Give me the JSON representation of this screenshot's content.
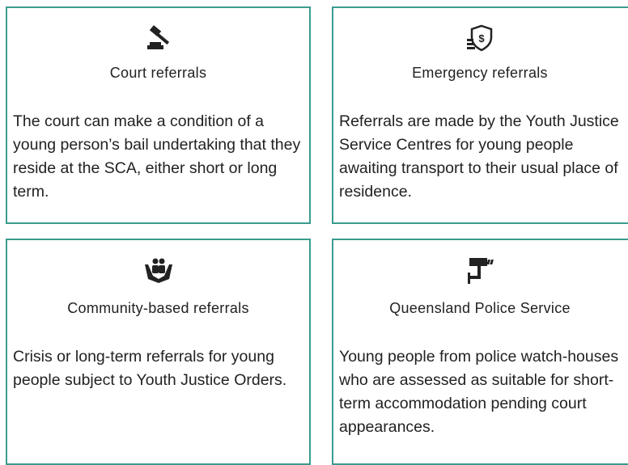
{
  "cards": [
    {
      "title": "Court referrals",
      "body": "The court can make a condition of a young person’s bail undertaking that they reside at the SCA, either short or long term."
    },
    {
      "title": "Emergency referrals",
      "body": "Referrals are made by the Youth Justice Service Centres for young people awaiting transport to their usual place of residence."
    },
    {
      "title": "Community-based referrals",
      "body": "Crisis or long-term referrals for young people subject to Youth Justice Orders."
    },
    {
      "title": "Queensland Police Service",
      "body": "Young people from police watch-houses who are assessed as suitable for short-term accommodation pending court appearances."
    }
  ]
}
